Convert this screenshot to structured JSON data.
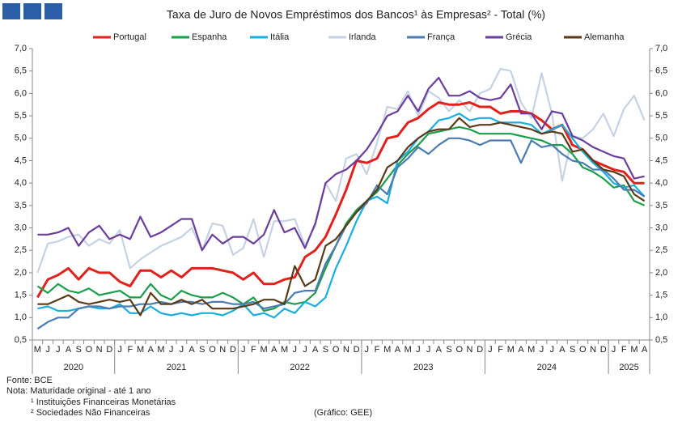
{
  "chart_data": {
    "type": "line",
    "title": "Taxa de Juro de Novos Empréstimos dos Bancos¹ às Empresas² - Total (%)",
    "categories": [
      "M",
      "J",
      "J",
      "A",
      "S",
      "O",
      "N",
      "D",
      "J",
      "F",
      "M",
      "A",
      "M",
      "J",
      "J",
      "A",
      "S",
      "O",
      "N",
      "D",
      "J",
      "F",
      "M",
      "A",
      "M",
      "J",
      "J",
      "A",
      "S",
      "O",
      "N",
      "D",
      "J",
      "F",
      "M",
      "A",
      "M",
      "J",
      "J",
      "A",
      "S",
      "O",
      "N",
      "D",
      "J",
      "F",
      "M",
      "A",
      "M",
      "J",
      "J",
      "A",
      "S",
      "O",
      "N",
      "D",
      "J",
      "F",
      "M",
      "A"
    ],
    "years": [
      "2020",
      "2021",
      "2022",
      "2023",
      "2024",
      "2025"
    ],
    "series": [
      {
        "name": "Portugal",
        "color": "#e3201b",
        "values": [
          1.45,
          1.85,
          1.95,
          2.1,
          1.85,
          2.1,
          2.0,
          2.0,
          1.8,
          1.7,
          2.05,
          2.05,
          1.9,
          2.05,
          1.9,
          2.1,
          2.1,
          2.1,
          2.05,
          2.0,
          1.85,
          2.0,
          1.75,
          1.75,
          1.85,
          1.9,
          2.35,
          2.5,
          2.8,
          3.3,
          3.85,
          4.5,
          4.45,
          4.55,
          5.0,
          5.05,
          5.35,
          5.45,
          5.65,
          5.8,
          5.75,
          5.75,
          5.8,
          5.7,
          5.7,
          5.55,
          5.6,
          5.6,
          5.55,
          5.4,
          5.2,
          5.3,
          4.85,
          4.75,
          4.5,
          4.4,
          4.3,
          4.25,
          4.0,
          4.0
        ]
      },
      {
        "name": "Espanha",
        "color": "#1a9e4a",
        "values": [
          1.7,
          1.55,
          1.75,
          1.6,
          1.55,
          1.65,
          1.5,
          1.55,
          1.6,
          1.45,
          1.45,
          1.75,
          1.5,
          1.4,
          1.6,
          1.5,
          1.45,
          1.45,
          1.55,
          1.45,
          1.3,
          1.45,
          1.15,
          1.2,
          1.35,
          1.3,
          1.35,
          1.55,
          2.1,
          2.6,
          3.1,
          3.4,
          3.6,
          3.8,
          4.1,
          4.4,
          4.65,
          4.85,
          5.1,
          5.15,
          5.2,
          5.25,
          5.2,
          5.1,
          5.1,
          5.1,
          5.1,
          5.05,
          5.0,
          4.95,
          4.85,
          4.85,
          4.65,
          4.35,
          4.25,
          4.1,
          3.9,
          3.95,
          3.6,
          3.5
        ]
      },
      {
        "name": "Itália",
        "color": "#1aaee0",
        "values": [
          1.2,
          1.25,
          1.15,
          1.15,
          1.2,
          1.25,
          1.2,
          1.2,
          1.3,
          1.1,
          1.1,
          1.25,
          1.1,
          1.05,
          1.1,
          1.05,
          1.1,
          1.1,
          1.05,
          1.15,
          1.3,
          1.05,
          1.1,
          1.0,
          1.2,
          1.1,
          1.35,
          1.25,
          1.45,
          2.1,
          2.6,
          3.15,
          3.6,
          3.7,
          3.55,
          4.5,
          4.7,
          5.0,
          5.15,
          5.4,
          5.45,
          5.55,
          5.4,
          5.45,
          5.45,
          5.35,
          5.35,
          5.35,
          5.3,
          5.1,
          5.2,
          5.3,
          5.0,
          4.7,
          4.45,
          4.25,
          4.0,
          3.9,
          3.95,
          3.7
        ]
      },
      {
        "name": "Irlanda",
        "color": "#c5d2e3",
        "values": [
          2.0,
          2.65,
          2.7,
          2.8,
          2.85,
          2.6,
          2.75,
          2.65,
          2.95,
          2.1,
          2.3,
          2.45,
          2.6,
          2.7,
          2.8,
          3.0,
          2.5,
          3.1,
          3.05,
          2.4,
          2.55,
          3.2,
          2.35,
          3.15,
          3.15,
          3.2,
          2.6,
          3.05,
          4.0,
          3.6,
          4.55,
          4.65,
          4.2,
          4.9,
          5.7,
          5.65,
          6.05,
          5.5,
          6.05,
          5.9,
          5.6,
          5.85,
          5.6,
          6.0,
          6.1,
          6.55,
          6.5,
          5.8,
          5.45,
          6.45,
          5.55,
          4.05,
          5.05,
          5.0,
          5.2,
          5.55,
          5.05,
          5.65,
          5.95,
          5.4
        ]
      },
      {
        "name": "França",
        "color": "#4a7cb3",
        "values": [
          0.75,
          0.9,
          1.0,
          1.0,
          1.2,
          1.25,
          1.25,
          1.2,
          1.25,
          1.25,
          1.3,
          1.3,
          1.35,
          1.3,
          1.35,
          1.35,
          1.3,
          1.35,
          1.35,
          1.3,
          1.3,
          1.35,
          1.2,
          1.25,
          1.3,
          1.55,
          1.6,
          1.6,
          2.2,
          2.6,
          3.05,
          3.35,
          3.55,
          3.95,
          3.75,
          4.35,
          4.55,
          4.8,
          4.65,
          4.85,
          5.0,
          5.0,
          4.95,
          4.85,
          4.95,
          4.95,
          4.95,
          4.45,
          4.95,
          4.8,
          4.85,
          4.65,
          4.5,
          4.45,
          4.3,
          4.3,
          4.1,
          3.85,
          3.85,
          3.7
        ]
      },
      {
        "name": "Grécia",
        "color": "#6a3d9e",
        "values": [
          2.85,
          2.85,
          2.9,
          3.0,
          2.6,
          2.9,
          3.05,
          2.75,
          2.85,
          2.75,
          3.25,
          2.8,
          2.9,
          3.05,
          3.2,
          3.2,
          2.5,
          2.85,
          2.65,
          2.8,
          2.8,
          2.65,
          2.85,
          3.4,
          2.9,
          3.0,
          2.55,
          3.1,
          4.0,
          4.2,
          4.3,
          4.5,
          4.75,
          5.1,
          5.5,
          5.6,
          5.95,
          5.6,
          6.1,
          6.35,
          5.95,
          5.95,
          6.05,
          5.9,
          5.85,
          5.9,
          6.2,
          5.55,
          5.55,
          5.2,
          5.6,
          5.55,
          5.05,
          4.95,
          4.8,
          4.7,
          4.6,
          4.55,
          4.1,
          4.15
        ]
      },
      {
        "name": "Alemanha",
        "color": "#5b3a18",
        "values": [
          1.3,
          1.3,
          1.4,
          1.5,
          1.35,
          1.3,
          1.35,
          1.4,
          1.35,
          1.4,
          1.05,
          1.55,
          1.3,
          1.3,
          1.4,
          1.3,
          1.4,
          1.2,
          1.2,
          1.2,
          1.25,
          1.3,
          1.4,
          1.4,
          1.3,
          2.15,
          1.7,
          1.85,
          2.6,
          2.75,
          3.05,
          3.35,
          3.6,
          3.85,
          4.35,
          4.5,
          4.8,
          5.0,
          5.15,
          5.2,
          5.2,
          5.45,
          5.25,
          5.3,
          5.3,
          5.35,
          5.3,
          5.25,
          5.2,
          5.1,
          5.15,
          5.1,
          4.7,
          4.75,
          4.5,
          4.3,
          4.25,
          4.15,
          3.75,
          3.6
        ]
      }
    ],
    "ylim": [
      0.5,
      7.0
    ],
    "yticks": [
      {
        "value": 0.5,
        "label": "0,5"
      },
      {
        "value": 1.0,
        "label": "1,0"
      },
      {
        "value": 1.5,
        "label": "1,5"
      },
      {
        "value": 2.0,
        "label": "2,0"
      },
      {
        "value": 2.5,
        "label": "2,5"
      },
      {
        "value": 3.0,
        "label": "3,0"
      },
      {
        "value": 3.5,
        "label": "3,5"
      },
      {
        "value": 4.0,
        "label": "4,0"
      },
      {
        "value": 4.5,
        "label": "4,5"
      },
      {
        "value": 5.0,
        "label": "5,0"
      },
      {
        "value": 5.5,
        "label": "5,5"
      },
      {
        "value": 6.0,
        "label": "6,0"
      },
      {
        "value": 6.5,
        "label": "6,5"
      },
      {
        "value": 7.0,
        "label": "7,0"
      }
    ],
    "y2lim": [
      0.5,
      7.0
    ],
    "y2ticks": [
      {
        "value": 0.5,
        "label": "0,5"
      },
      {
        "value": 1.0,
        "label": "1,0"
      },
      {
        "value": 1.5,
        "label": "1,5"
      },
      {
        "value": 2.0,
        "label": "2,0"
      },
      {
        "value": 2.5,
        "label": "2,5"
      },
      {
        "value": 3.0,
        "label": "3,0"
      },
      {
        "value": 3.5,
        "label": "3,5"
      },
      {
        "value": 4.0,
        "label": "4,0"
      },
      {
        "value": 4.5,
        "label": "4,5"
      },
      {
        "value": 5.0,
        "label": "5,0"
      },
      {
        "value": 5.5,
        "label": "5,5"
      },
      {
        "value": 6.0,
        "label": "6,0"
      },
      {
        "value": 6.5,
        "label": "6,5"
      },
      {
        "value": 7.0,
        "label": "7,0"
      }
    ],
    "grid": false,
    "legend": "top",
    "source": "Fonte: BCE",
    "note": "Nota: Maturidade original - até 1 ano",
    "footnotes": [
      "¹ Instituições Financeiras Monetárias",
      "² Sociedades Não Financeiras"
    ],
    "credit": "(Gráfico: GEE)"
  }
}
